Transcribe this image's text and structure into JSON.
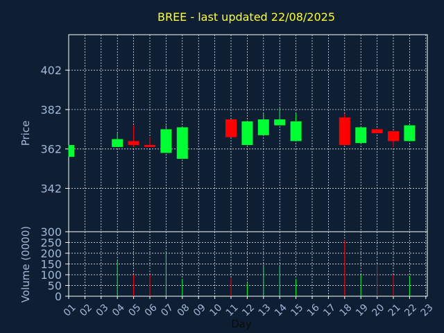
{
  "chart_data": {
    "type": "candlestick",
    "title": "BREE - last updated 22/08/2025",
    "xlabel": "Day",
    "price_panel": {
      "ylabel": "Price",
      "ylim": [
        320,
        420
      ],
      "yticks": [
        "402",
        "382",
        "362",
        "342"
      ],
      "ytick_values": [
        402,
        382,
        362,
        342
      ]
    },
    "volume_panel": {
      "ylabel": "Volume (0000)",
      "ylim": [
        0,
        300
      ],
      "yticks": [
        "300",
        "250",
        "200",
        "150",
        "100",
        "50",
        "0"
      ],
      "ytick_values": [
        300,
        250,
        200,
        150,
        100,
        50,
        0
      ]
    },
    "x_ticks": [
      "01",
      "02",
      "03",
      "04",
      "05",
      "06",
      "07",
      "08",
      "09",
      "10",
      "11",
      "12",
      "13",
      "14",
      "15",
      "16",
      "17",
      "18",
      "19",
      "20",
      "21",
      "22",
      "23"
    ],
    "candles": [
      {
        "day": "01",
        "open": 358,
        "close": 364,
        "high": 364,
        "low": 358,
        "volume": 0
      },
      {
        "day": "04",
        "open": 363,
        "close": 367,
        "high": 370,
        "low": 363,
        "volume": 165
      },
      {
        "day": "05",
        "open": 366,
        "close": 364,
        "high": 374,
        "low": 363,
        "volume": 100
      },
      {
        "day": "06",
        "open": 364,
        "close": 363,
        "high": 368,
        "low": 363,
        "volume": 100
      },
      {
        "day": "07",
        "open": 360,
        "close": 372,
        "high": 374,
        "low": 360,
        "volume": 210
      },
      {
        "day": "08",
        "open": 357,
        "close": 373,
        "high": 373,
        "low": 357,
        "volume": 80
      },
      {
        "day": "11",
        "open": 377,
        "close": 368,
        "high": 377,
        "low": 368,
        "volume": 85
      },
      {
        "day": "12",
        "open": 364,
        "close": 376,
        "high": 376,
        "low": 364,
        "volume": 60
      },
      {
        "day": "13",
        "open": 369,
        "close": 377,
        "high": 380,
        "low": 369,
        "volume": 140
      },
      {
        "day": "14",
        "open": 374,
        "close": 377,
        "high": 383,
        "low": 374,
        "volume": 140
      },
      {
        "day": "15",
        "open": 366,
        "close": 376,
        "high": 380,
        "low": 366,
        "volume": 80
      },
      {
        "day": "18",
        "open": 378,
        "close": 364,
        "high": 380,
        "low": 364,
        "volume": 260
      },
      {
        "day": "19",
        "open": 365,
        "close": 373,
        "high": 373,
        "low": 365,
        "volume": 100
      },
      {
        "day": "20",
        "open": 372,
        "close": 370,
        "high": 372,
        "low": 370,
        "volume": 145
      },
      {
        "day": "21",
        "open": 371,
        "close": 366,
        "high": 371,
        "low": 363,
        "volume": 100
      },
      {
        "day": "22",
        "open": 366,
        "close": 374,
        "high": 374,
        "low": 366,
        "volume": 95
      }
    ],
    "colors": {
      "up": "#00ff33",
      "down": "#ff0000",
      "background": "#0f1f33",
      "grid": "#ffffff",
      "axis_text": "#a0b8d8",
      "title": "#ffff33"
    },
    "grid": true
  }
}
